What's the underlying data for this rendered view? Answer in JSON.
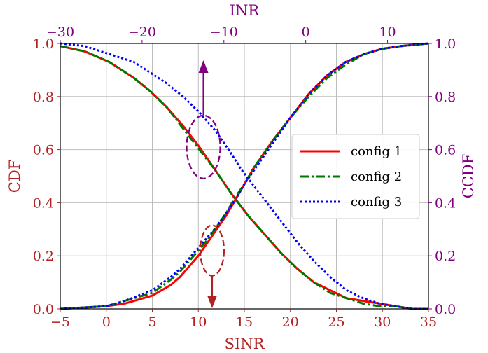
{
  "chart_data": {
    "type": "line",
    "x_bottom": {
      "label": "SINR",
      "range": [
        -5,
        35
      ],
      "ticks": [
        "−5",
        "0",
        "5",
        "10",
        "15",
        "20",
        "25",
        "30",
        "35"
      ],
      "color": "#b22222"
    },
    "x_top": {
      "label": "INR",
      "range": [
        -30,
        15
      ],
      "ticks": [
        "−30",
        "−20",
        "−10",
        "0",
        "10"
      ],
      "color": "#800080"
    },
    "y_left": {
      "label": "CDF",
      "range": [
        0,
        1
      ],
      "ticks": [
        "0.0",
        "0.2",
        "0.4",
        "0.6",
        "0.8",
        "1.0"
      ],
      "color": "#b22222"
    },
    "y_right": {
      "label": "CCDF",
      "range": [
        0,
        1
      ],
      "ticks": [
        "0.0",
        "0.2",
        "0.4",
        "0.6",
        "0.8",
        "1.0"
      ],
      "color": "#800080"
    },
    "grid": true,
    "legend_position": "center-right",
    "series_styles": [
      {
        "name": "config 1",
        "color": "#ff0000",
        "dash": "solid"
      },
      {
        "name": "config 2",
        "color": "#007700",
        "dash": "dashdot"
      },
      {
        "name": "config 3",
        "color": "#0000ff",
        "dash": "dotted"
      }
    ],
    "cdf_sinr": {
      "x": [
        -5,
        0,
        2,
        5,
        7,
        8,
        9,
        10,
        11,
        12,
        13,
        14,
        15,
        16,
        17,
        18,
        20,
        22,
        24,
        26,
        28,
        30,
        32,
        35
      ],
      "series": [
        {
          "name": "config 1",
          "values": [
            0.0,
            0.01,
            0.02,
            0.05,
            0.09,
            0.12,
            0.16,
            0.2,
            0.25,
            0.3,
            0.35,
            0.41,
            0.47,
            0.53,
            0.58,
            0.63,
            0.72,
            0.81,
            0.88,
            0.93,
            0.96,
            0.98,
            0.99,
            1.0
          ]
        },
        {
          "name": "config 2",
          "values": [
            0.0,
            0.01,
            0.03,
            0.06,
            0.11,
            0.14,
            0.18,
            0.22,
            0.26,
            0.31,
            0.36,
            0.42,
            0.47,
            0.53,
            0.58,
            0.63,
            0.72,
            0.8,
            0.87,
            0.92,
            0.96,
            0.98,
            0.99,
            1.0
          ]
        },
        {
          "name": "config 3",
          "values": [
            0.0,
            0.01,
            0.03,
            0.07,
            0.12,
            0.15,
            0.19,
            0.23,
            0.27,
            0.31,
            0.36,
            0.41,
            0.47,
            0.52,
            0.57,
            0.62,
            0.72,
            0.81,
            0.88,
            0.93,
            0.96,
            0.98,
            0.99,
            1.0
          ]
        }
      ]
    },
    "ccdf_inr": {
      "x": [
        -30,
        -27,
        -24,
        -21,
        -19,
        -17,
        -15,
        -13,
        -11,
        -9,
        -8,
        -7,
        -5,
        -3,
        -1,
        1,
        3,
        5,
        7,
        9,
        11,
        13,
        15
      ],
      "series": [
        {
          "name": "config 1",
          "values": [
            0.99,
            0.97,
            0.93,
            0.87,
            0.82,
            0.76,
            0.69,
            0.61,
            0.52,
            0.43,
            0.39,
            0.35,
            0.28,
            0.21,
            0.15,
            0.1,
            0.07,
            0.04,
            0.03,
            0.02,
            0.01,
            0.0,
            0.0
          ]
        },
        {
          "name": "config 2",
          "values": [
            0.99,
            0.97,
            0.93,
            0.87,
            0.82,
            0.76,
            0.68,
            0.6,
            0.52,
            0.43,
            0.39,
            0.35,
            0.28,
            0.21,
            0.15,
            0.1,
            0.06,
            0.04,
            0.02,
            0.01,
            0.01,
            0.0,
            0.0
          ]
        },
        {
          "name": "config 3",
          "values": [
            1.0,
            0.99,
            0.96,
            0.93,
            0.89,
            0.85,
            0.8,
            0.74,
            0.67,
            0.58,
            0.53,
            0.49,
            0.41,
            0.33,
            0.25,
            0.18,
            0.12,
            0.07,
            0.04,
            0.02,
            0.01,
            0.0,
            0.0
          ]
        }
      ]
    },
    "annotations": [
      {
        "target": "cdf_sinr",
        "shape": "dashed-ellipse",
        "color": "#b22222",
        "center": [
          11.5,
          0.22
        ],
        "arrow": "down"
      },
      {
        "target": "ccdf_inr",
        "shape": "dashed-ellipse",
        "color": "#800080",
        "center": [
          -12.5,
          0.61
        ],
        "arrow": "up"
      }
    ]
  }
}
